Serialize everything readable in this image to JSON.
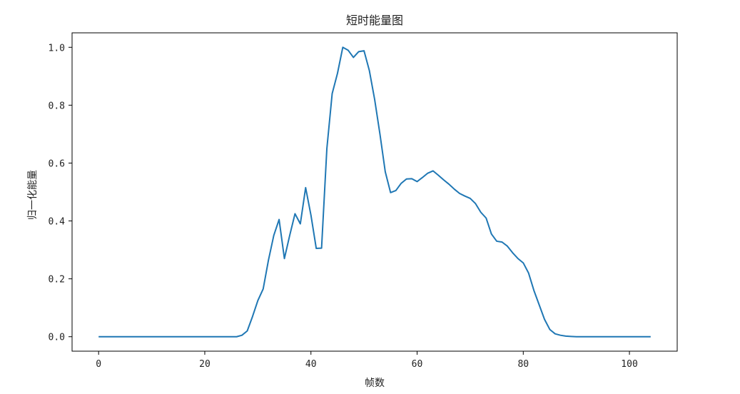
{
  "chart_data": {
    "type": "line",
    "title": "短时能量图",
    "xlabel": "帧数",
    "ylabel": "归一化能量",
    "xlim": [
      -5,
      109
    ],
    "ylim": [
      -0.05,
      1.05
    ],
    "x_ticks": [
      0,
      20,
      40,
      60,
      80,
      100
    ],
    "y_ticks": [
      0.0,
      0.2,
      0.4,
      0.6,
      0.8,
      1.0
    ],
    "x_tick_labels": [
      "0",
      "20",
      "40",
      "60",
      "80",
      "100"
    ],
    "y_tick_labels": [
      "0.0",
      "0.2",
      "0.4",
      "0.6",
      "0.8",
      "1.0"
    ],
    "grid": false,
    "colors": {
      "line": "#1f77b4"
    },
    "series": [
      {
        "x": [
          0,
          1,
          2,
          3,
          4,
          5,
          6,
          7,
          8,
          9,
          10,
          11,
          12,
          13,
          14,
          15,
          16,
          17,
          18,
          19,
          20,
          21,
          22,
          23,
          24,
          25,
          26,
          27,
          28,
          29,
          30,
          31,
          32,
          33,
          34,
          35,
          36,
          37,
          38,
          39,
          40,
          41,
          42,
          43,
          44,
          45,
          46,
          47,
          48,
          49,
          50,
          51,
          52,
          53,
          54,
          55,
          56,
          57,
          58,
          59,
          60,
          61,
          62,
          63,
          64,
          65,
          66,
          67,
          68,
          69,
          70,
          71,
          72,
          73,
          74,
          75,
          76,
          77,
          78,
          79,
          80,
          81,
          82,
          83,
          84,
          85,
          86,
          87,
          88,
          89,
          90,
          91,
          92,
          93,
          94,
          95,
          96,
          97,
          98,
          99,
          100,
          101,
          102,
          103,
          104
        ],
        "values": [
          0,
          0,
          0,
          0,
          0,
          0,
          0,
          0,
          0,
          0,
          0,
          0,
          0,
          0,
          0,
          0,
          0,
          0,
          0,
          0,
          0,
          0,
          0,
          0,
          0,
          0,
          0,
          0.005,
          0.02,
          0.07,
          0.125,
          0.165,
          0.265,
          0.35,
          0.405,
          0.27,
          0.35,
          0.425,
          0.39,
          0.515,
          0.42,
          0.305,
          0.306,
          0.65,
          0.84,
          0.91,
          1.0,
          0.99,
          0.965,
          0.985,
          0.988,
          0.92,
          0.82,
          0.7,
          0.57,
          0.498,
          0.505,
          0.53,
          0.545,
          0.546,
          0.536,
          0.55,
          0.565,
          0.573,
          0.558,
          0.542,
          0.527,
          0.51,
          0.495,
          0.486,
          0.478,
          0.46,
          0.43,
          0.41,
          0.355,
          0.33,
          0.327,
          0.313,
          0.29,
          0.27,
          0.255,
          0.22,
          0.16,
          0.11,
          0.06,
          0.025,
          0.01,
          0.005,
          0.002,
          0.001,
          0,
          0,
          0,
          0,
          0,
          0,
          0,
          0,
          0,
          0,
          0,
          0,
          0,
          0,
          0
        ]
      }
    ]
  }
}
